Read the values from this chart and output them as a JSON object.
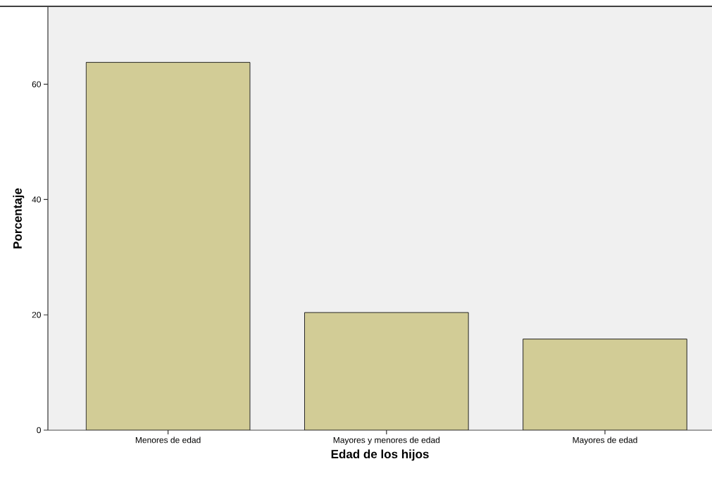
{
  "chart_data": {
    "type": "bar",
    "xlabel": "Edad de los hijos",
    "ylabel": "Porcentaje",
    "categories": [
      "Menores de edad",
      "Mayores y menores de edad",
      "Mayores de edad"
    ],
    "values": [
      63.8,
      20.4,
      15.8
    ],
    "color": "#d2cc96",
    "ylim": [
      0,
      73.4
    ],
    "yticks": [
      0,
      20,
      40,
      60
    ],
    "grid": false
  }
}
